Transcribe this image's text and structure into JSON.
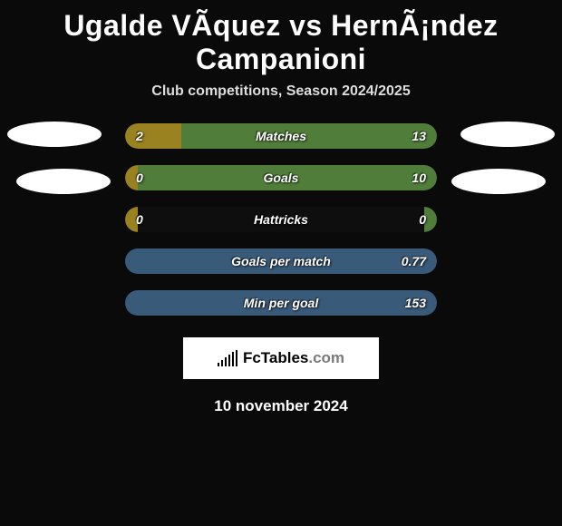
{
  "title": "Ugalde VÃ­quez vs HernÃ¡ndez Campanioni",
  "subtitle": "Club competitions, Season 2024/2025",
  "date": "10 november 2024",
  "logo": {
    "text_main": "FcTables",
    "text_suffix": ".com"
  },
  "colors": {
    "bg": "#0a0a0a",
    "left_fill": "#9a8220",
    "right_fill": "#507d3a",
    "neutral_fill": "#3a5a7a",
    "ellipse": "#ffffff",
    "logo_bg": "#ffffff"
  },
  "stats": [
    {
      "label": "Matches",
      "left_value": "2",
      "right_value": "13",
      "left_pct": 18,
      "right_pct": 82,
      "left_color": "#9a8220",
      "right_color": "#507d3a"
    },
    {
      "label": "Goals",
      "left_value": "0",
      "right_value": "10",
      "left_pct": 4,
      "right_pct": 96,
      "left_color": "#9a8220",
      "right_color": "#507d3a"
    },
    {
      "label": "Hattricks",
      "left_value": "0",
      "right_value": "0",
      "left_pct": 4,
      "right_pct": 4,
      "left_color": "#9a8220",
      "right_color": "#507d3a"
    },
    {
      "label": "Goals per match",
      "left_value": "",
      "right_value": "0.77",
      "left_pct": 0,
      "right_pct": 100,
      "left_color": "#9a8220",
      "right_color": "#3a5a7a"
    },
    {
      "label": "Min per goal",
      "left_value": "",
      "right_value": "153",
      "left_pct": 0,
      "right_pct": 100,
      "left_color": "#9a8220",
      "right_color": "#3a5a7a"
    }
  ]
}
